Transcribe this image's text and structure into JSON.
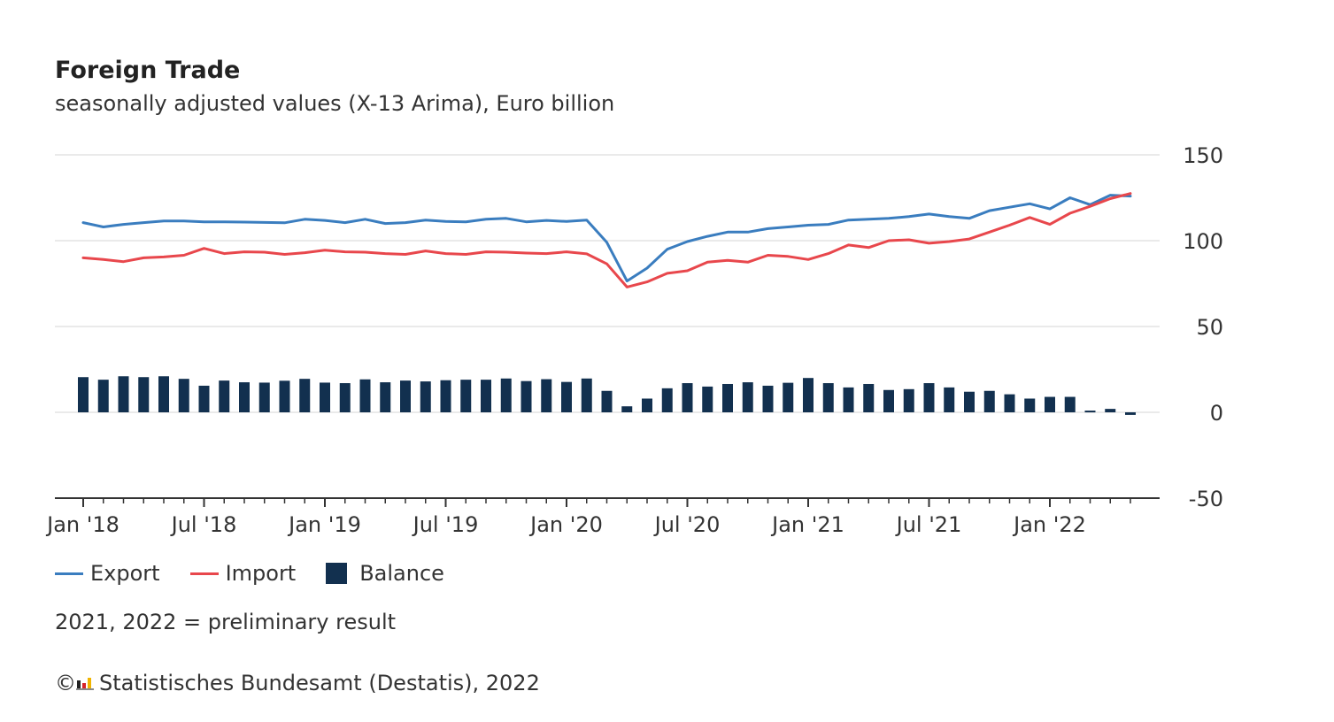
{
  "header": {
    "title": "Foreign Trade",
    "subtitle": "seasonally adjusted values (X-13 Arima), Euro billion"
  },
  "legend": {
    "export_label": "Export",
    "import_label": "Import",
    "balance_label": "Balance"
  },
  "footnote": "2021, 2022 = preliminary result",
  "source": {
    "logo_icon": "destatis-logo-icon",
    "copyright_symbol": "©",
    "text": "Statistisches Bundesamt (Destatis), 2022"
  },
  "colors": {
    "export": "#3a7dbf",
    "import": "#e8474c",
    "balance": "#12304f",
    "grid": "#e4e4e4",
    "axis": "#333333"
  },
  "chart_data": {
    "type": "line",
    "x": [
      "2018-01",
      "2018-02",
      "2018-03",
      "2018-04",
      "2018-05",
      "2018-06",
      "2018-07",
      "2018-08",
      "2018-09",
      "2018-10",
      "2018-11",
      "2018-12",
      "2019-01",
      "2019-02",
      "2019-03",
      "2019-04",
      "2019-05",
      "2019-06",
      "2019-07",
      "2019-08",
      "2019-09",
      "2019-10",
      "2019-11",
      "2019-12",
      "2020-01",
      "2020-02",
      "2020-03",
      "2020-04",
      "2020-05",
      "2020-06",
      "2020-07",
      "2020-08",
      "2020-09",
      "2020-10",
      "2020-11",
      "2020-12",
      "2021-01",
      "2021-02",
      "2021-03",
      "2021-04",
      "2021-05",
      "2021-06",
      "2021-07",
      "2021-08",
      "2021-09",
      "2021-10",
      "2021-11",
      "2021-12",
      "2022-01",
      "2022-02",
      "2022-03",
      "2022-04",
      "2022-05"
    ],
    "tick_labels": [
      "Jan '18",
      "Jul '18",
      "Jan '19",
      "Jul '19",
      "Jan '20",
      "Jul '20",
      "Jan '21",
      "Jul '21",
      "Jan '22"
    ],
    "series": [
      {
        "name": "Export",
        "kind": "line",
        "values": [
          110.5,
          108.0,
          109.5,
          110.5,
          111.5,
          111.5,
          111.0,
          111.0,
          110.8,
          110.6,
          110.4,
          112.5,
          111.8,
          110.5,
          112.5,
          110.0,
          110.5,
          112.0,
          111.2,
          111.0,
          112.5,
          113.0,
          111.0,
          111.8,
          111.2,
          112.0,
          99.0,
          76.5,
          84.0,
          95.0,
          99.5,
          102.5,
          105.0,
          105.0,
          107.0,
          108.0,
          109.0,
          109.5,
          112.0,
          112.5,
          113.0,
          114.0,
          115.5,
          114.0,
          113.0,
          117.5,
          119.5,
          121.5,
          118.5,
          125.0,
          121.0,
          126.5,
          126.0
        ]
      },
      {
        "name": "Import",
        "kind": "line",
        "values": [
          90.0,
          89.0,
          87.8,
          90.0,
          90.5,
          91.5,
          95.5,
          92.5,
          93.5,
          93.3,
          92.0,
          93.0,
          94.5,
          93.5,
          93.3,
          92.5,
          92.0,
          94.0,
          92.5,
          92.0,
          93.5,
          93.3,
          92.8,
          92.5,
          93.5,
          92.3,
          86.5,
          73.0,
          76.0,
          81.0,
          82.5,
          87.5,
          88.5,
          87.5,
          91.5,
          90.8,
          89.0,
          92.5,
          97.5,
          96.0,
          100.0,
          100.5,
          98.5,
          99.5,
          101.0,
          105.0,
          109.0,
          113.5,
          109.5,
          116.0,
          120.0,
          124.5,
          127.5
        ]
      },
      {
        "name": "Balance",
        "kind": "bar",
        "values": [
          20.5,
          19.0,
          21.0,
          20.5,
          21.0,
          19.5,
          15.5,
          18.5,
          17.5,
          17.3,
          18.4,
          19.5,
          17.3,
          17.0,
          19.2,
          17.5,
          18.5,
          18.0,
          18.7,
          19.0,
          19.0,
          19.7,
          18.2,
          19.3,
          17.7,
          19.7,
          12.5,
          3.5,
          8.0,
          14.0,
          17.0,
          15.0,
          16.5,
          17.5,
          15.5,
          17.2,
          20.0,
          17.0,
          14.5,
          16.5,
          13.0,
          13.5,
          17.0,
          14.5,
          12.0,
          12.5,
          10.5,
          8.0,
          9.0,
          9.0,
          1.0,
          2.0,
          -1.5
        ]
      }
    ],
    "y_ticks": [
      150,
      100,
      50,
      0,
      -50
    ],
    "ylim": [
      -50,
      150
    ],
    "grid": true,
    "legend_position": "bottom-left"
  }
}
